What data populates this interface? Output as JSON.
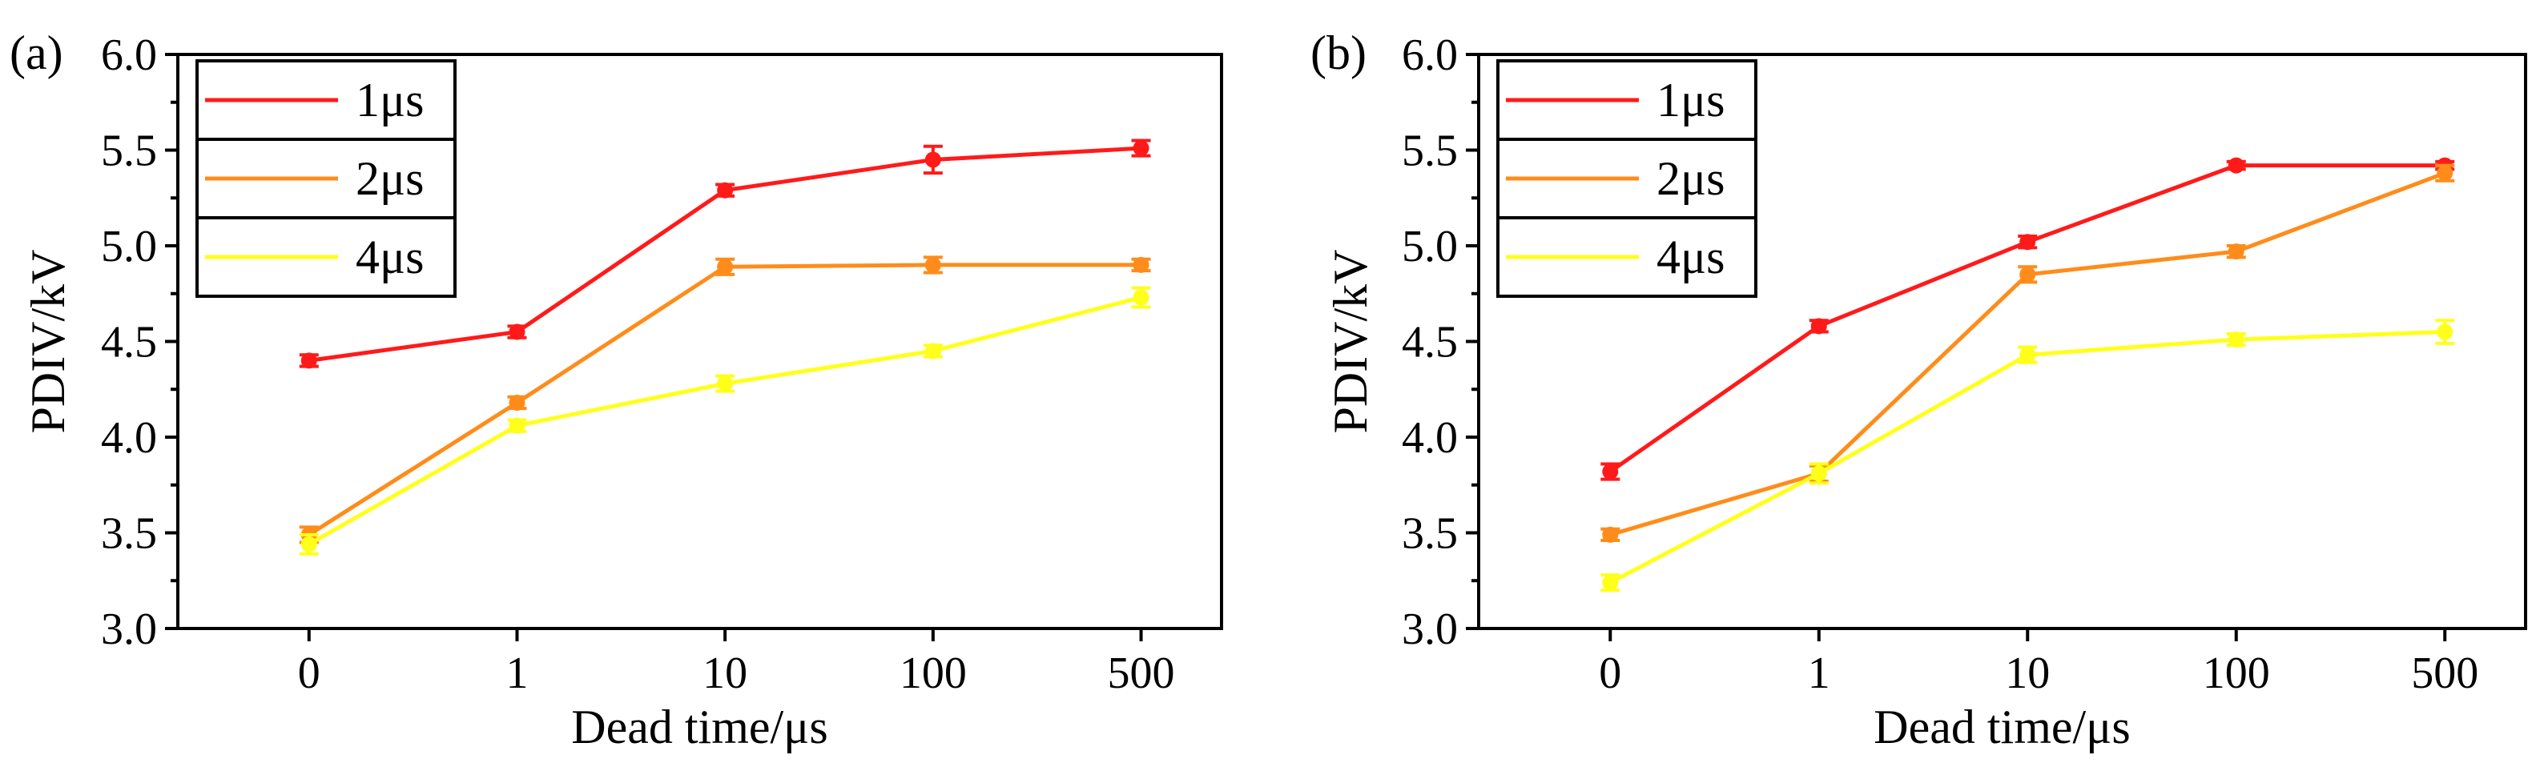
{
  "chart_data": [
    {
      "type": "line",
      "panel_label": "(a)",
      "xlabel": "Dead time/μs",
      "ylabel": "PDIV/kV",
      "categories": [
        "0",
        "1",
        "10",
        "100",
        "500"
      ],
      "ylim": [
        3.0,
        6.0
      ],
      "yticks": [
        "3.0",
        "3.5",
        "4.0",
        "4.5",
        "5.0",
        "5.5",
        "6.0"
      ],
      "legend_position": "top-left",
      "series": [
        {
          "name": "1μs",
          "color": "#ff1a1a",
          "values": [
            4.4,
            4.55,
            5.29,
            5.45,
            5.51
          ],
          "errors": [
            0.03,
            0.03,
            0.03,
            0.07,
            0.04
          ]
        },
        {
          "name": "2μs",
          "color": "#ff8c1a",
          "values": [
            3.49,
            4.18,
            4.89,
            4.9,
            4.9
          ],
          "errors": [
            0.04,
            0.03,
            0.04,
            0.04,
            0.03
          ]
        },
        {
          "name": "4μs",
          "color": "#ffff1a",
          "values": [
            3.44,
            4.06,
            4.28,
            4.45,
            4.73
          ],
          "errors": [
            0.05,
            0.03,
            0.04,
            0.03,
            0.05
          ]
        }
      ]
    },
    {
      "type": "line",
      "panel_label": "(b)",
      "xlabel": "Dead time/μs",
      "ylabel": "PDIV/kV",
      "categories": [
        "0",
        "1",
        "10",
        "100",
        "500"
      ],
      "ylim": [
        3.0,
        6.0
      ],
      "yticks": [
        "3.0",
        "3.5",
        "4.0",
        "4.5",
        "5.0",
        "5.5",
        "6.0"
      ],
      "legend_position": "top-left",
      "series": [
        {
          "name": "1μs",
          "color": "#ff1a1a",
          "values": [
            3.82,
            4.58,
            5.02,
            5.42,
            5.42
          ],
          "errors": [
            0.04,
            0.03,
            0.03,
            0.02,
            0.02
          ]
        },
        {
          "name": "2μs",
          "color": "#ff8c1a",
          "values": [
            3.49,
            3.81,
            4.85,
            4.97,
            5.38
          ],
          "errors": [
            0.03,
            0.04,
            0.04,
            0.03,
            0.04
          ]
        },
        {
          "name": "4μs",
          "color": "#ffff1a",
          "values": [
            3.24,
            3.81,
            4.43,
            4.51,
            4.55
          ],
          "errors": [
            0.04,
            0.05,
            0.04,
            0.03,
            0.06
          ]
        }
      ]
    }
  ]
}
